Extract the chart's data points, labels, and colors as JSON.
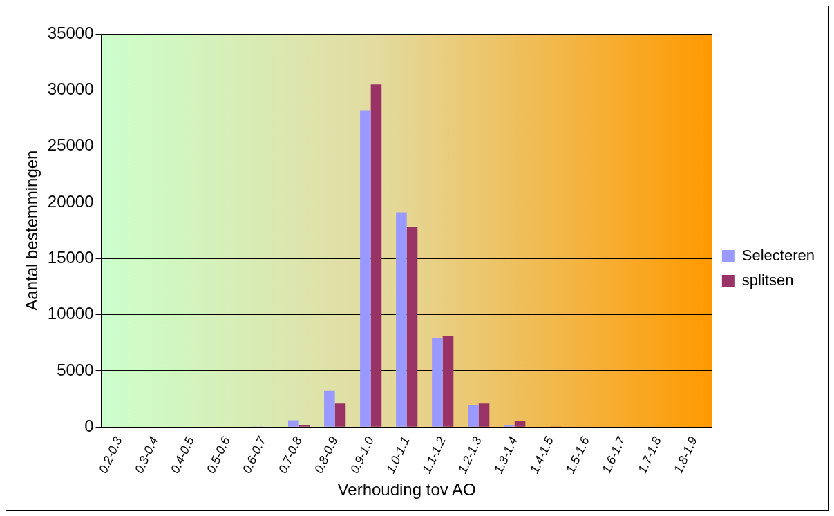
{
  "chart_data": {
    "type": "bar",
    "xlabel": "Verhouding tov AO",
    "ylabel": "Aantal bestemmingen",
    "categories": [
      "0.2-0.3",
      "0.3-0.4",
      "0.4-0.5",
      "0.5-0.6",
      "0.6-0.7",
      "0.7-0.8",
      "0.8-0.9",
      "0.9-1.0",
      "1.0-1.1",
      "1.1-1.2",
      "1.2-1.3",
      "1.3-1.4",
      "1.4-1.5",
      "1.5-1.6",
      "1.6-1.7",
      "1.7-1.8",
      "1.8-1.9"
    ],
    "series": [
      {
        "name": "Selecteren",
        "color": "#9999ff",
        "values": [
          0,
          0,
          0,
          0,
          50,
          600,
          3230,
          28200,
          19100,
          7950,
          1950,
          200,
          0,
          0,
          0,
          0,
          0
        ]
      },
      {
        "name": "splitsen",
        "color": "#993366",
        "values": [
          0,
          0,
          0,
          0,
          0,
          200,
          2100,
          30500,
          17800,
          8080,
          2100,
          550,
          50,
          0,
          0,
          0,
          0
        ]
      }
    ],
    "ylim": [
      0,
      35000
    ],
    "yticks": [
      0,
      5000,
      10000,
      15000,
      20000,
      25000,
      30000,
      35000
    ],
    "grid": "y",
    "legend": "right"
  }
}
